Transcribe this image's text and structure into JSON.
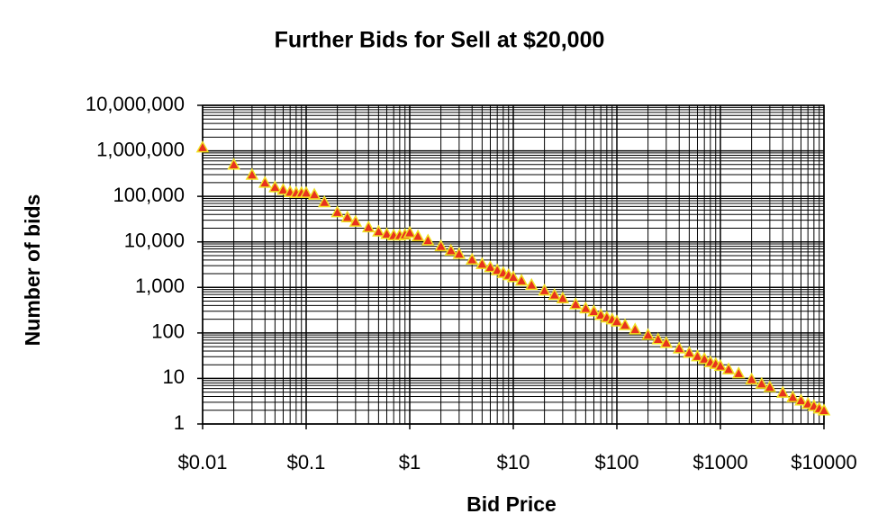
{
  "chart_data": {
    "type": "scatter",
    "title": "Further Bids for Sell at $20,000",
    "x_label": "Bid Price",
    "y_label": "Number of bids",
    "x": [
      0.01,
      0.02,
      0.03,
      0.04,
      0.05,
      0.06,
      0.07,
      0.08,
      0.09,
      0.1,
      0.12,
      0.15,
      0.2,
      0.25,
      0.3,
      0.4,
      0.5,
      0.6,
      0.7,
      0.8,
      0.9,
      1,
      1.2,
      1.5,
      2,
      2.5,
      3,
      4,
      5,
      6,
      7,
      8,
      9,
      10,
      12,
      15,
      20,
      25,
      30,
      40,
      50,
      60,
      70,
      80,
      90,
      100,
      120,
      150,
      200,
      250,
      300,
      400,
      500,
      600,
      700,
      800,
      900,
      1000,
      1200,
      1500,
      2000,
      2500,
      3000,
      4000,
      5000,
      6000,
      7000,
      8000,
      9000,
      10000
    ],
    "values": [
      1200000,
      500000,
      300000,
      200000,
      160000,
      140000,
      125000,
      120000,
      120000,
      120000,
      110000,
      75000,
      45000,
      35000,
      28000,
      21000,
      17000,
      15000,
      14000,
      14000,
      14500,
      16000,
      13400,
      10800,
      8100,
      6500,
      5500,
      4100,
      3300,
      2800,
      2400,
      2100,
      1870,
      1690,
      1420,
      1140,
      860,
      690,
      580,
      430,
      350,
      300,
      250,
      220,
      200,
      180,
      150,
      120,
      91,
      73,
      61,
      46,
      37,
      31,
      27,
      23,
      21,
      19,
      16,
      13,
      9.6,
      7.7,
      6.5,
      4.9,
      3.9,
      3.3,
      2.8,
      2.5,
      2.2,
      2
    ],
    "color": "#e8321e",
    "edge_color": "#f0e020",
    "xlog": true,
    "ylog": true,
    "grid": true,
    "minor_grid": true,
    "xlim": [
      0.01,
      10000
    ],
    "ylim": [
      1,
      10000000
    ],
    "xticks": [
      {
        "value": 0.01,
        "label": "$0.01"
      },
      {
        "value": 0.1,
        "label": "$0.1"
      },
      {
        "value": 1,
        "label": "$1"
      },
      {
        "value": 10,
        "label": "$10"
      },
      {
        "value": 100,
        "label": "$100"
      },
      {
        "value": 1000,
        "label": "$1000"
      },
      {
        "value": 10000,
        "label": "$10000"
      }
    ],
    "yticks": [
      1,
      10,
      100,
      {
        "value": 1000,
        "label": "1,000"
      },
      {
        "value": 10000,
        "label": "10,000"
      },
      {
        "value": 100000,
        "label": "100,000"
      },
      {
        "value": 1000000,
        "label": "1,000,000"
      },
      {
        "value": 10000000,
        "label": "10,000,000"
      }
    ]
  }
}
